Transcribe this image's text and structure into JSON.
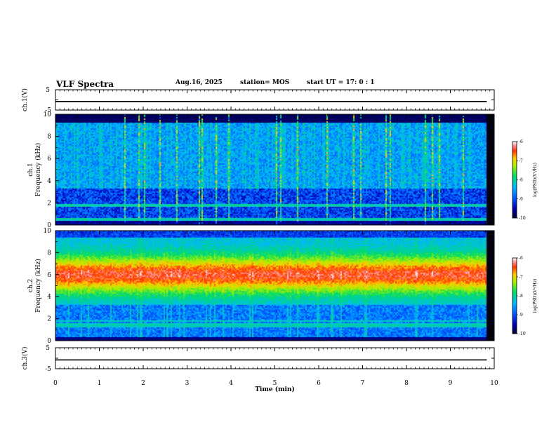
{
  "header": {
    "title": "VLF Spectra",
    "date": "Aug.16, 2025",
    "station": "station= MOS",
    "start": "start  UT =   17: 0  : 1"
  },
  "chart_data": [
    {
      "type": "line",
      "panel": "ch1-waveform",
      "ylabel": "ch.1(V)",
      "ylim": [
        -5,
        5
      ],
      "yticks": [
        "5",
        "-5"
      ],
      "xlim": [
        0,
        10
      ],
      "series": [
        {
          "approx_level": -0.8
        }
      ]
    },
    {
      "type": "heatmap",
      "panel": "ch1-spectrogram",
      "ylabel": "ch.1\nFrequency (kHz)",
      "xlim": [
        0,
        10
      ],
      "ylim": [
        0,
        10
      ],
      "yticks": [
        "0",
        "2",
        "4",
        "6",
        "8",
        "10"
      ],
      "data_end_min": 9.83,
      "colorbar": {
        "label": "log(PSD)(V²/Hz)",
        "range": [
          -10,
          -6
        ],
        "ticks": [
          "-6",
          "-7",
          "-8",
          "-9",
          "-10"
        ]
      },
      "features": {
        "broadband_noise_khz": [
          0.3,
          9.2
        ],
        "line_frequencies_khz": [
          0.5,
          1.5,
          1.8
        ],
        "quiet_band_khz": [
          9.2,
          10
        ]
      }
    },
    {
      "type": "heatmap",
      "panel": "ch2-spectrogram",
      "ylabel": "ch.2\nFrequency (kHz)",
      "xlim": [
        0,
        10
      ],
      "ylim": [
        0,
        10
      ],
      "yticks": [
        "0",
        "2",
        "4",
        "6",
        "8",
        "10"
      ],
      "data_end_min": 9.83,
      "colorbar": {
        "label": "log(PSD)(V²/Hz)",
        "range": [
          -10,
          -6
        ],
        "ticks": [
          "-6",
          "-7",
          "-8",
          "-9",
          "-10"
        ]
      },
      "features": {
        "intense_band_khz": [
          4,
          8
        ],
        "line_frequencies_khz": [
          1.4,
          1.8
        ]
      }
    },
    {
      "type": "line",
      "panel": "ch3-waveform",
      "ylabel": "ch.3(V)",
      "ylim": [
        -5,
        5
      ],
      "yticks": [
        "5",
        "-5"
      ],
      "xlim": [
        0,
        10
      ],
      "xticks": [
        "0",
        "1",
        "2",
        "3",
        "4",
        "5",
        "6",
        "7",
        "8",
        "9",
        "10"
      ],
      "xlabel": "Time (min)",
      "series": [
        {
          "approx_level": -0.8
        }
      ]
    }
  ]
}
